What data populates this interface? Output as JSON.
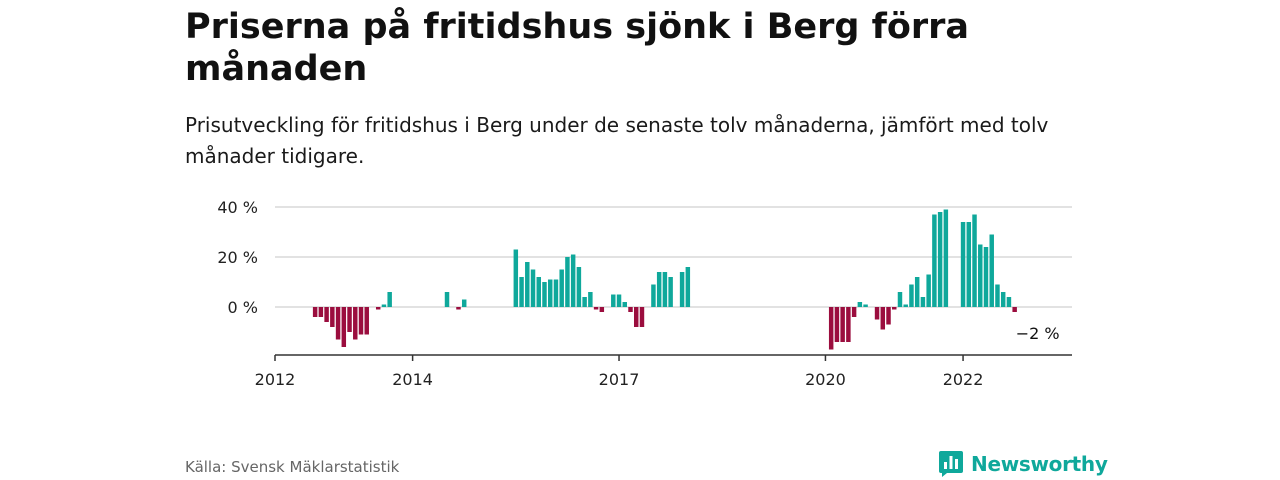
{
  "header": {
    "title": "Priserna på fritidshus sjönk i Berg förra månaden",
    "subtitle": "Prisutveckling för fritidshus i Berg under de senaste tolv månaderna, jämfört med tolv månader tidigare."
  },
  "footer": {
    "source": "Källa: Svensk Mäklarstatistik",
    "brand": "Newsworthy",
    "brand_icon": "bar-chart-logo-icon"
  },
  "colors": {
    "positive": "#0fa89b",
    "negative": "#9b0d3e",
    "brand": "#0fa89b",
    "grid": "#d9d9d9",
    "axis": "#333333"
  },
  "chart_data": {
    "type": "bar",
    "title": "",
    "xlabel": "",
    "ylabel": "",
    "ylim": [
      -18,
      44
    ],
    "yticks": [
      0,
      20,
      40
    ],
    "ytick_labels": [
      "0 %",
      "20 %",
      "40 %"
    ],
    "xlim": [
      "2012-01",
      "2023-08"
    ],
    "xticks": [
      "2012-01",
      "2014-01",
      "2017-01",
      "2020-01",
      "2022-01"
    ],
    "xtick_labels": [
      "2012",
      "2014",
      "2017",
      "2020",
      "2022"
    ],
    "grid": true,
    "annotation": {
      "date": "2023-02",
      "value": -2,
      "text": "−2 %"
    },
    "series": [
      {
        "x": [
          "2012-08",
          "2012-09",
          "2012-10",
          "2012-11",
          "2012-12",
          "2013-01",
          "2013-02",
          "2013-03",
          "2013-04",
          "2013-05",
          "2013-07",
          "2013-08",
          "2013-09",
          "2014-07",
          "2014-09",
          "2014-10",
          "2015-07",
          "2015-08",
          "2015-09",
          "2015-10",
          "2015-11",
          "2015-12",
          "2016-01",
          "2016-02",
          "2016-03",
          "2016-04",
          "2016-05",
          "2016-06",
          "2016-07",
          "2016-08",
          "2016-09",
          "2016-10",
          "2016-12",
          "2017-01",
          "2017-02",
          "2017-03",
          "2017-04",
          "2017-05",
          "2017-07",
          "2017-08",
          "2017-09",
          "2017-10",
          "2017-12",
          "2018-01",
          "2020-02",
          "2020-03",
          "2020-04",
          "2020-05",
          "2020-06",
          "2020-07",
          "2020-08",
          "2020-10",
          "2020-11",
          "2020-12",
          "2021-01",
          "2021-02",
          "2021-03",
          "2021-04",
          "2021-05",
          "2021-06",
          "2021-07",
          "2021-08",
          "2021-09",
          "2021-10",
          "2022-01",
          "2022-02",
          "2022-03",
          "2022-04",
          "2022-05",
          "2022-06",
          "2022-07",
          "2022-08",
          "2022-09",
          "2022-10"
        ],
        "values": [
          -4,
          -4,
          -6,
          -8,
          -13,
          -16,
          -10,
          -13,
          -11,
          -11,
          -1,
          1,
          6,
          6,
          -1,
          3,
          23,
          12,
          18,
          15,
          12,
          10,
          11,
          11,
          15,
          20,
          21,
          16,
          4,
          6,
          -1,
          -2,
          5,
          5,
          2,
          -2,
          -8,
          -8,
          9,
          14,
          14,
          12,
          14,
          16,
          -17,
          -14,
          -14,
          -14,
          -4,
          2,
          1,
          -5,
          -9,
          -7,
          -1,
          6,
          1,
          9,
          12,
          4,
          13,
          37,
          38,
          39,
          34,
          34,
          37,
          25,
          24,
          29,
          9,
          6,
          4,
          -2
        ]
      }
    ]
  }
}
